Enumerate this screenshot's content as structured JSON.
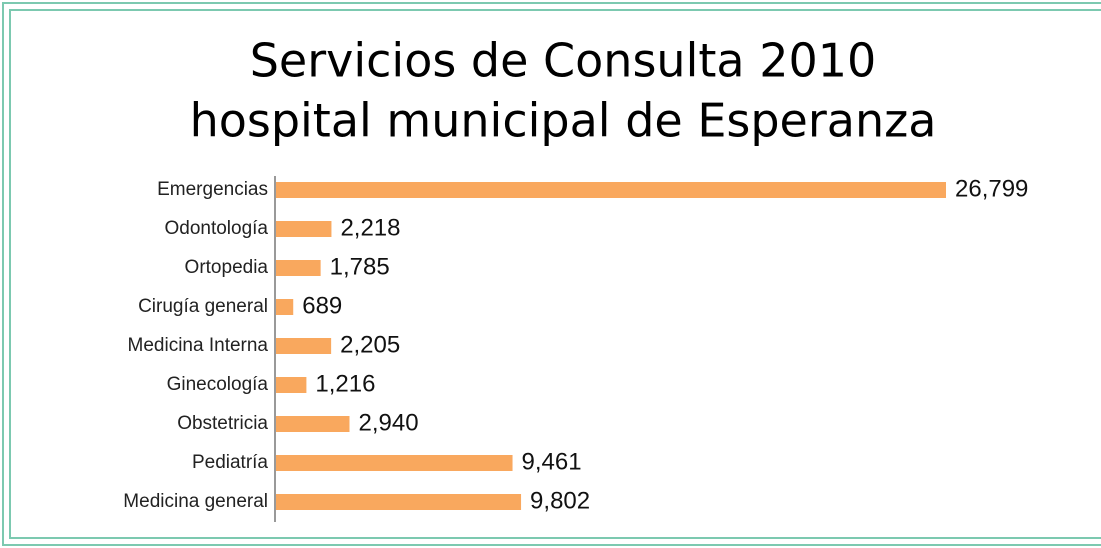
{
  "chart_data": {
    "type": "barh",
    "title": [
      "Servicios de Consulta 2010",
      "hospital municipal de Esperanza"
    ],
    "categories": [
      "Emergencias",
      "Odontología",
      "Ortopedia",
      "Cirugía general",
      "Medicina Interna",
      "Ginecología",
      "Obstetricia",
      "Pediatría",
      "Medicina general"
    ],
    "values": [
      26799,
      2218,
      1785,
      689,
      2205,
      1216,
      2940,
      9461,
      9802
    ],
    "value_labels": [
      "26,799",
      "2,218",
      "1,785",
      "689",
      "2,205",
      "1,216",
      "2,940",
      "9,461",
      "9,802"
    ],
    "color": "#f9a85e"
  }
}
